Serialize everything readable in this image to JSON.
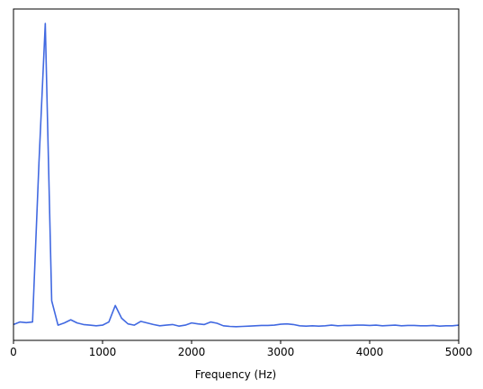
{
  "chart_data": {
    "type": "line",
    "title": "",
    "xlabel": "Frequency (Hz)",
    "ylabel": "",
    "xlim": [
      0,
      5000
    ],
    "ylim": [
      0,
      1.0
    ],
    "grid": false,
    "x_ticks": [
      0,
      1000,
      2000,
      3000,
      4000,
      5000
    ],
    "x_tick_labels": [
      "0",
      "1000",
      "2000",
      "3000",
      "4000",
      "5000"
    ],
    "y_ticks_visible": false,
    "series": [
      {
        "color": "#4169E1",
        "x": [
          0,
          71,
          143,
          214,
          286,
          357,
          429,
          500,
          571,
          643,
          714,
          786,
          857,
          929,
          1000,
          1071,
          1143,
          1214,
          1286,
          1357,
          1429,
          1500,
          1571,
          1643,
          1714,
          1786,
          1857,
          1929,
          2000,
          2071,
          2143,
          2214,
          2286,
          2357,
          2429,
          2500,
          2571,
          2643,
          2714,
          2786,
          2857,
          2929,
          3000,
          3071,
          3143,
          3214,
          3286,
          3357,
          3429,
          3500,
          3571,
          3643,
          3714,
          3786,
          3857,
          3929,
          4000,
          4071,
          4143,
          4214,
          4286,
          4357,
          4429,
          4500,
          4571,
          4643,
          4714,
          4786,
          4857,
          4929,
          5000
        ],
        "y": [
          0.05,
          0.058,
          0.056,
          0.058,
          0.56,
          1.0,
          0.125,
          0.048,
          0.055,
          0.065,
          0.055,
          0.05,
          0.048,
          0.046,
          0.048,
          0.058,
          0.11,
          0.07,
          0.052,
          0.048,
          0.06,
          0.055,
          0.05,
          0.046,
          0.048,
          0.05,
          0.045,
          0.048,
          0.055,
          0.052,
          0.05,
          0.058,
          0.054,
          0.046,
          0.044,
          0.043,
          0.044,
          0.045,
          0.046,
          0.047,
          0.047,
          0.048,
          0.051,
          0.052,
          0.05,
          0.046,
          0.045,
          0.046,
          0.045,
          0.046,
          0.048,
          0.046,
          0.047,
          0.047,
          0.048,
          0.048,
          0.047,
          0.048,
          0.046,
          0.047,
          0.048,
          0.046,
          0.047,
          0.047,
          0.046,
          0.046,
          0.047,
          0.045,
          0.046,
          0.046,
          0.048
        ]
      }
    ]
  }
}
